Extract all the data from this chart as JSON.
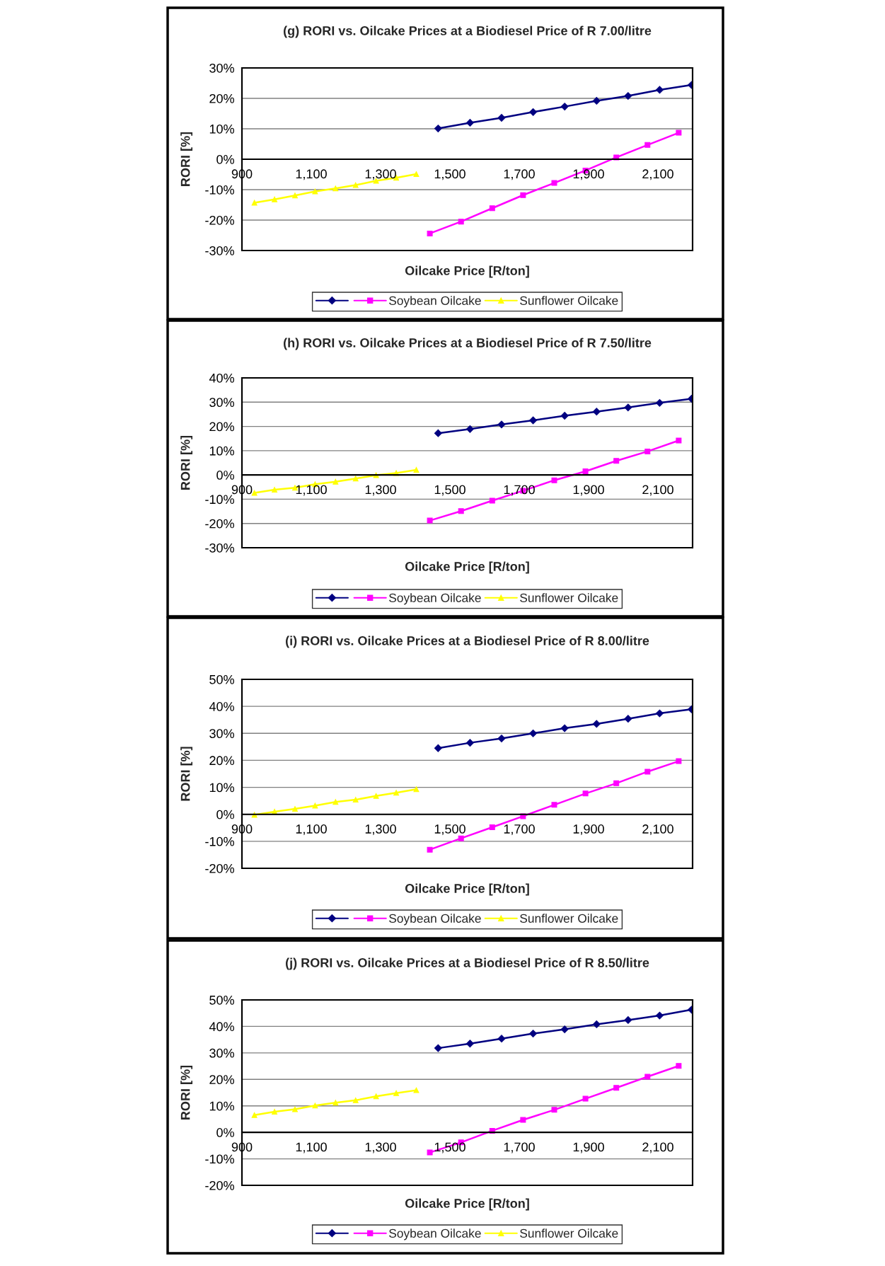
{
  "chart_data": [
    {
      "type": "line",
      "title": "(g) RORI vs. Oilcake Prices at a Biodiesel Price of R 7.00/litre",
      "xlabel": "Oilcake Price [R/ton]",
      "ylabel": "RORI [%]",
      "xlim": [
        900,
        2200
      ],
      "xticks": [
        900,
        {
          "value": 1100,
          "label": "1,100"
        },
        {
          "value": 1300,
          "label": "1,300"
        },
        {
          "value": 1500,
          "label": "1,500"
        },
        {
          "value": 1700,
          "label": "1,700"
        },
        {
          "value": 1900,
          "label": "1,900"
        },
        {
          "value": 2100,
          "label": "2,100"
        }
      ],
      "ylim": [
        -30,
        30
      ],
      "yticks": [
        {
          "value": -30,
          "label": "-30%"
        },
        {
          "value": -20,
          "label": "-20%"
        },
        {
          "value": -10,
          "label": "-10%"
        },
        {
          "value": 0,
          "label": "0%"
        },
        {
          "value": 10,
          "label": "10%"
        },
        {
          "value": 20,
          "label": "20%"
        },
        {
          "value": 30,
          "label": "30%"
        }
      ],
      "grid": "y",
      "legend": "bottom",
      "series": [
        {
          "color": "#000080",
          "marker": "diamond",
          "x": [
            1466,
            1558,
            1649,
            1740,
            1831,
            1923,
            2014,
            2105,
            2197
          ],
          "values": [
            10.1,
            12.0,
            13.6,
            15.5,
            17.3,
            19.2,
            20.8,
            22.8,
            24.4
          ]
        },
        {
          "name": "Soybean Oilcake",
          "color": "#ff00ff",
          "marker": "square",
          "x": [
            1442,
            1532,
            1622,
            1711,
            1801,
            1891,
            1980,
            2070,
            2160
          ],
          "values": [
            -24.4,
            -20.5,
            -16.1,
            -11.8,
            -7.8,
            -3.7,
            0.6,
            4.7,
            8.7
          ]
        },
        {
          "name": "Sunflower Oilcake",
          "color": "#ffff00",
          "marker": "triangle",
          "x": [
            936,
            994,
            1053,
            1111,
            1170,
            1228,
            1287,
            1345,
            1403
          ],
          "values": [
            -14.3,
            -13.2,
            -11.9,
            -10.6,
            -9.6,
            -8.5,
            -7.1,
            -6.1,
            -4.9
          ]
        }
      ]
    },
    {
      "type": "line",
      "title": "(h) RORI vs. Oilcake Prices at a Biodiesel Price of R 7.50/litre",
      "xlabel": "Oilcake Price [R/ton]",
      "ylabel": "RORI [%]",
      "xlim": [
        900,
        2200
      ],
      "xticks": [
        900,
        {
          "value": 1100,
          "label": "1,100"
        },
        {
          "value": 1300,
          "label": "1,300"
        },
        {
          "value": 1500,
          "label": "1,500"
        },
        {
          "value": 1700,
          "label": "1,700"
        },
        {
          "value": 1900,
          "label": "1,900"
        },
        {
          "value": 2100,
          "label": "2,100"
        }
      ],
      "ylim": [
        -30,
        40
      ],
      "yticks": [
        {
          "value": -30,
          "label": "-30%"
        },
        {
          "value": -20,
          "label": "-20%"
        },
        {
          "value": -10,
          "label": "-10%"
        },
        {
          "value": 0,
          "label": "0%"
        },
        {
          "value": 10,
          "label": "10%"
        },
        {
          "value": 20,
          "label": "20%"
        },
        {
          "value": 30,
          "label": "30%"
        },
        {
          "value": 40,
          "label": "40%"
        }
      ],
      "grid": "y",
      "legend": "bottom",
      "series": [
        {
          "color": "#000080",
          "marker": "diamond",
          "x": [
            1466,
            1558,
            1649,
            1740,
            1831,
            1923,
            2014,
            2105,
            2197
          ],
          "values": [
            17.2,
            18.9,
            20.8,
            22.5,
            24.4,
            26.1,
            27.8,
            29.7,
            31.4
          ]
        },
        {
          "name": "Soybean Oilcake",
          "color": "#ff00ff",
          "marker": "square",
          "x": [
            1442,
            1532,
            1622,
            1711,
            1801,
            1891,
            1980,
            2070,
            2160
          ],
          "values": [
            -18.8,
            -14.9,
            -10.6,
            -6.5,
            -2.2,
            1.5,
            5.8,
            9.7,
            14.2
          ]
        },
        {
          "name": "Sunflower Oilcake",
          "color": "#ffff00",
          "marker": "triangle",
          "x": [
            936,
            994,
            1053,
            1111,
            1170,
            1228,
            1287,
            1345,
            1403
          ],
          "values": [
            -7.4,
            -6.1,
            -5.3,
            -3.8,
            -2.8,
            -1.5,
            -0.1,
            0.8,
            2.1
          ]
        }
      ]
    },
    {
      "type": "line",
      "title": "(i) RORI vs. Oilcake Prices at a Biodiesel Price of R 8.00/litre",
      "xlabel": "Oilcake Price [R/ton]",
      "ylabel": "RORI [%]",
      "xlim": [
        900,
        2200
      ],
      "xticks": [
        900,
        {
          "value": 1100,
          "label": "1,100"
        },
        {
          "value": 1300,
          "label": "1,300"
        },
        {
          "value": 1500,
          "label": "1,500"
        },
        {
          "value": 1700,
          "label": "1,700"
        },
        {
          "value": 1900,
          "label": "1,900"
        },
        {
          "value": 2100,
          "label": "2,100"
        }
      ],
      "ylim": [
        -20,
        50
      ],
      "yticks": [
        {
          "value": -20,
          "label": "-20%"
        },
        {
          "value": -10,
          "label": "-10%"
        },
        {
          "value": 0,
          "label": "0%"
        },
        {
          "value": 10,
          "label": "10%"
        },
        {
          "value": 20,
          "label": "20%"
        },
        {
          "value": 30,
          "label": "30%"
        },
        {
          "value": 40,
          "label": "40%"
        },
        {
          "value": 50,
          "label": "50%"
        }
      ],
      "grid": "y",
      "legend": "bottom",
      "series": [
        {
          "color": "#000080",
          "marker": "diamond",
          "x": [
            1466,
            1558,
            1649,
            1740,
            1831,
            1923,
            2014,
            2105,
            2197
          ],
          "values": [
            24.5,
            26.5,
            28.1,
            30.0,
            31.9,
            33.5,
            35.4,
            37.4,
            38.9
          ]
        },
        {
          "name": "Soybean Oilcake",
          "color": "#ff00ff",
          "marker": "square",
          "x": [
            1442,
            1532,
            1622,
            1711,
            1801,
            1891,
            1980,
            2070,
            2160
          ],
          "values": [
            -13.1,
            -8.9,
            -4.8,
            -0.7,
            3.5,
            7.7,
            11.5,
            15.8,
            19.7
          ]
        },
        {
          "name": "Sunflower Oilcake",
          "color": "#ffff00",
          "marker": "triangle",
          "x": [
            936,
            994,
            1053,
            1111,
            1170,
            1228,
            1287,
            1345,
            1403
          ],
          "values": [
            -0.2,
            1.0,
            2.0,
            3.2,
            4.6,
            5.4,
            6.8,
            8.0,
            9.3
          ]
        }
      ]
    },
    {
      "type": "line",
      "title": "(j) RORI vs. Oilcake Prices at a Biodiesel Price of R 8.50/litre",
      "xlabel": "Oilcake Price [R/ton]",
      "ylabel": "RORI [%]",
      "xlim": [
        900,
        2200
      ],
      "xticks": [
        900,
        {
          "value": 1100,
          "label": "1,100"
        },
        {
          "value": 1300,
          "label": "1,300"
        },
        {
          "value": 1500,
          "label": "1,500"
        },
        {
          "value": 1700,
          "label": "1,700"
        },
        {
          "value": 1900,
          "label": "1,900"
        },
        {
          "value": 2100,
          "label": "2,100"
        }
      ],
      "ylim": [
        -20,
        50
      ],
      "yticks": [
        {
          "value": -20,
          "label": "-20%"
        },
        {
          "value": -10,
          "label": "-10%"
        },
        {
          "value": 0,
          "label": "0%"
        },
        {
          "value": 10,
          "label": "10%"
        },
        {
          "value": 20,
          "label": "20%"
        },
        {
          "value": 30,
          "label": "30%"
        },
        {
          "value": 40,
          "label": "40%"
        },
        {
          "value": 50,
          "label": "50%"
        }
      ],
      "grid": "y",
      "legend": "bottom",
      "series": [
        {
          "color": "#000080",
          "marker": "diamond",
          "x": [
            1466,
            1558,
            1649,
            1740,
            1831,
            1923,
            2014,
            2105,
            2197
          ],
          "values": [
            31.8,
            33.5,
            35.4,
            37.3,
            38.9,
            40.8,
            42.4,
            44.1,
            46.3
          ]
        },
        {
          "name": "Soybean Oilcake",
          "color": "#ff00ff",
          "marker": "square",
          "x": [
            1442,
            1532,
            1622,
            1711,
            1801,
            1891,
            1980,
            2070,
            2160
          ],
          "values": [
            -7.6,
            -3.8,
            0.6,
            4.7,
            8.5,
            12.7,
            16.8,
            21.0,
            25.1
          ]
        },
        {
          "name": "Sunflower Oilcake",
          "color": "#ffff00",
          "marker": "triangle",
          "x": [
            936,
            994,
            1053,
            1111,
            1170,
            1228,
            1287,
            1345,
            1403
          ],
          "values": [
            6.5,
            7.8,
            8.7,
            10.1,
            11.2,
            12.1,
            13.6,
            14.8,
            15.9
          ]
        }
      ]
    }
  ]
}
